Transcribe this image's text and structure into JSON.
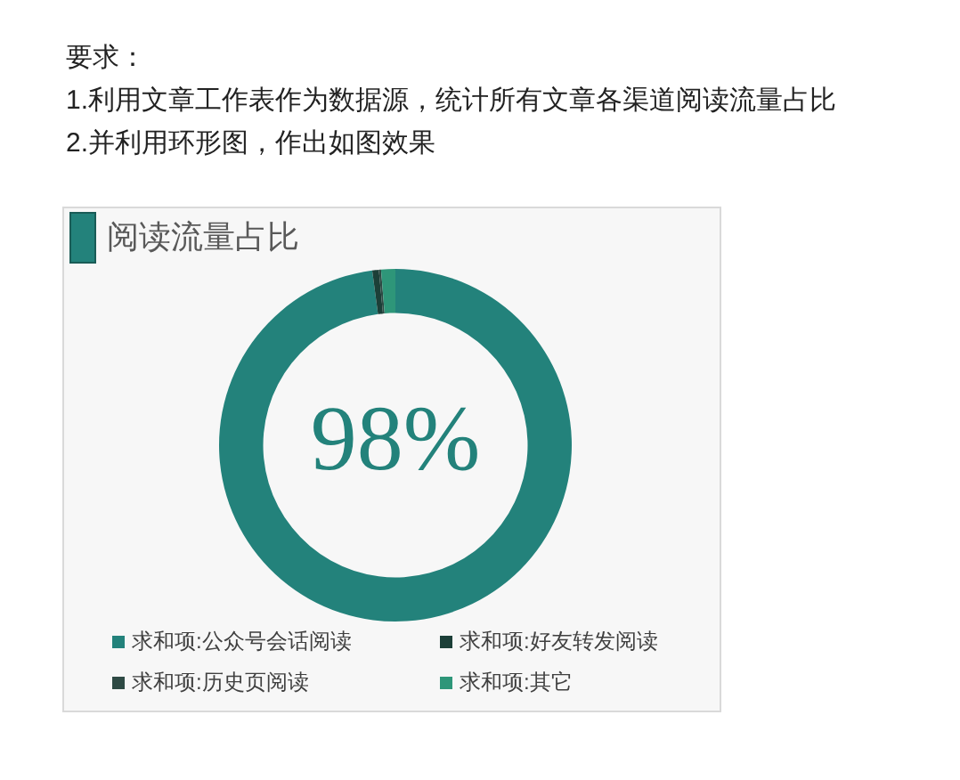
{
  "chart_data": {
    "type": "donut",
    "title": "阅读流量占比",
    "categories": [
      "求和项:公众号会话阅读",
      "求和项:好友转发阅读",
      "求和项:历史页阅读",
      "求和项:其它"
    ],
    "values": [
      97.9,
      0.6,
      0.2,
      1.3
    ],
    "colors": [
      "#23827b",
      "#1c3f38",
      "#2e4a44",
      "#2e9679"
    ],
    "legend": "bottom",
    "annotations": [
      "要求：",
      "1.利用文章工作表作为数据源，统计所有文章各渠道阅读流量占比",
      "2.并利用环形图，作出如图效果",
      {
        "text": "98%",
        "x": "求和项:公众号会话阅读"
      }
    ]
  }
}
